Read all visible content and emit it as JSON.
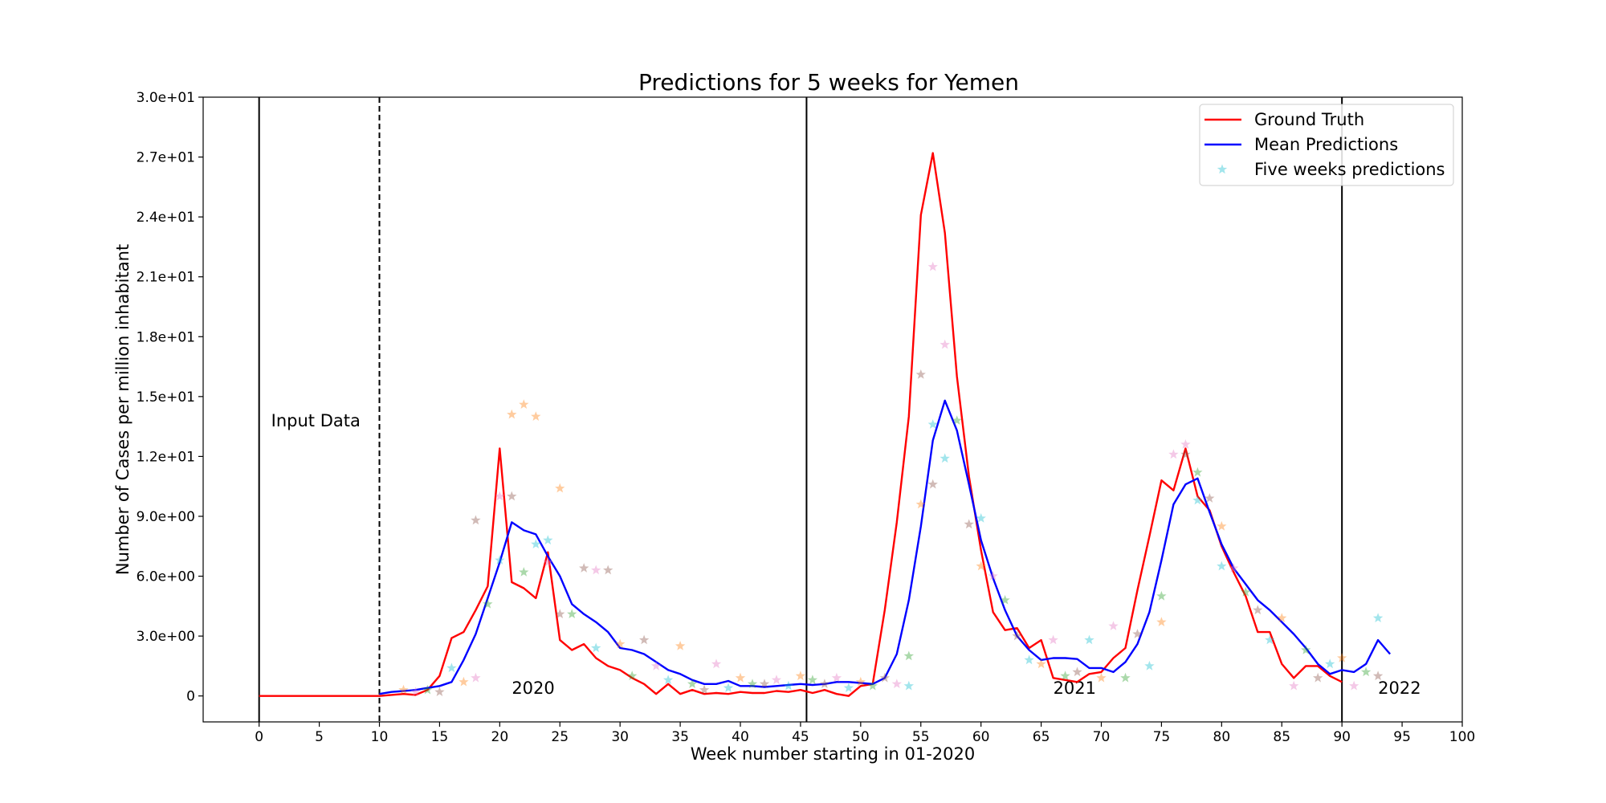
{
  "chart_data": {
    "type": "line",
    "title": "Predictions for 5 weeks for Yemen",
    "xlabel": "Week number starting in 01-2020",
    "ylabel": "Number of Cases per million inhabitant",
    "annotations": [
      "Input Data",
      "2020",
      "2021",
      "2022"
    ],
    "x": [
      0,
      1,
      2,
      3,
      4,
      5,
      6,
      7,
      8,
      9,
      10,
      11,
      12,
      13,
      14,
      15,
      16,
      17,
      18,
      19,
      20,
      21,
      22,
      23,
      24,
      25,
      26,
      27,
      28,
      29,
      30,
      31,
      32,
      33,
      34,
      35,
      36,
      37,
      38,
      39,
      40,
      41,
      42,
      43,
      44,
      45,
      46,
      47,
      48,
      49,
      50,
      51,
      52,
      53,
      54,
      55,
      56,
      57,
      58,
      59,
      60,
      61,
      62,
      63,
      64,
      65,
      66,
      67,
      68,
      69,
      70,
      71,
      72,
      73,
      74,
      75,
      76,
      77,
      78,
      79,
      80,
      81,
      82,
      83,
      84,
      85,
      86,
      87,
      88,
      89,
      90,
      91,
      92,
      93,
      94
    ],
    "series": [
      {
        "name": "Ground Truth",
        "color": "#ff0000",
        "values": [
          0,
          0,
          0,
          0,
          0,
          0,
          0,
          0,
          0,
          0,
          0,
          0.05,
          0.1,
          0.05,
          0.3,
          1.0,
          2.9,
          3.2,
          4.3,
          5.5,
          12.4,
          5.7,
          5.4,
          4.9,
          7.2,
          2.8,
          2.3,
          2.6,
          1.9,
          1.5,
          1.3,
          0.9,
          0.6,
          0.1,
          0.6,
          0.1,
          0.3,
          0.1,
          0.15,
          0.1,
          0.2,
          0.15,
          0.15,
          0.25,
          0.2,
          0.3,
          0.15,
          0.3,
          0.1,
          0.0,
          0.5,
          0.6,
          4.3,
          8.7,
          14.0,
          24.1,
          27.2,
          23.2,
          16.0,
          11.0,
          7.3,
          4.2,
          3.3,
          3.4,
          2.4,
          2.8,
          0.9,
          0.8,
          0.7,
          1.1,
          1.2,
          1.9,
          2.4,
          5.3,
          8.0,
          10.8,
          10.3,
          12.4,
          10.0,
          9.3,
          7.5,
          6.2,
          5.0,
          3.2,
          3.2,
          1.6,
          0.9,
          1.5,
          1.5,
          1.0,
          0.7,
          null,
          null,
          null,
          null
        ]
      },
      {
        "name": "Mean Predictions",
        "color": "#0000ff",
        "values": [
          null,
          null,
          null,
          null,
          null,
          null,
          null,
          null,
          null,
          null,
          0.1,
          0.2,
          0.25,
          0.3,
          0.4,
          0.5,
          0.7,
          1.8,
          3.1,
          4.9,
          6.7,
          8.7,
          8.3,
          8.1,
          7.0,
          6.0,
          4.6,
          4.1,
          3.7,
          3.2,
          2.4,
          2.3,
          2.1,
          1.7,
          1.3,
          1.1,
          0.8,
          0.6,
          0.6,
          0.75,
          0.5,
          0.5,
          0.45,
          0.5,
          0.55,
          0.6,
          0.55,
          0.6,
          0.7,
          0.7,
          0.65,
          0.6,
          0.9,
          2.1,
          4.8,
          8.5,
          12.8,
          14.8,
          13.3,
          10.6,
          7.8,
          5.9,
          4.3,
          3.0,
          2.3,
          1.8,
          1.9,
          1.9,
          1.85,
          1.4,
          1.4,
          1.2,
          1.7,
          2.6,
          4.2,
          6.8,
          9.6,
          10.6,
          10.9,
          9.2,
          7.6,
          6.4,
          5.6,
          4.8,
          4.3,
          3.7,
          3.1,
          2.4,
          1.6,
          1.1,
          1.3,
          1.2,
          1.6,
          2.8,
          2.1
        ]
      },
      {
        "name": "Five weeks predictions",
        "marker": "star",
        "groups": [
          {
            "color": "#ff7f0e",
            "x": [
              12,
              17,
              21,
              22,
              23,
              25,
              30,
              35,
              40,
              45,
              50,
              55,
              60,
              65,
              70,
              75,
              80,
              85,
              90
            ],
            "values": [
              0.3,
              0.7,
              14.1,
              14.6,
              14.0,
              10.4,
              2.6,
              2.5,
              0.9,
              1.0,
              0.7,
              9.6,
              6.5,
              1.6,
              0.9,
              3.7,
              8.5,
              3.9,
              1.9
            ]
          },
          {
            "color": "#e377c2",
            "x": [
              13,
              18,
              20,
              24,
              28,
              33,
              38,
              43,
              48,
              53,
              56,
              57,
              61,
              66,
              71,
              76,
              77,
              81,
              86,
              91
            ],
            "values": [
              0.2,
              0.9,
              10.0,
              6.7,
              6.3,
              1.5,
              1.6,
              0.8,
              0.9,
              0.6,
              21.5,
              17.6,
              6.0,
              2.8,
              3.5,
              12.1,
              12.6,
              6.4,
              0.5,
              0.5
            ]
          },
          {
            "color": "#2ca02c",
            "x": [
              14,
              19,
              22,
              26,
              31,
              36,
              41,
              46,
              51,
              54,
              58,
              62,
              67,
              72,
              75,
              78,
              82,
              87,
              92
            ],
            "values": [
              0.3,
              4.6,
              6.2,
              4.1,
              1.0,
              0.6,
              0.6,
              0.8,
              0.5,
              2.0,
              13.8,
              4.8,
              1.0,
              0.9,
              5.0,
              11.2,
              5.2,
              2.3,
              1.2
            ]
          },
          {
            "color": "#8c564b",
            "x": [
              15,
              18,
              21,
              25,
              27,
              29,
              32,
              37,
              42,
              47,
              52,
              55,
              56,
              59,
              63,
              68,
              73,
              77,
              79,
              83,
              88,
              93
            ],
            "values": [
              0.2,
              8.8,
              10.0,
              4.1,
              6.4,
              6.3,
              2.8,
              0.3,
              0.6,
              0.6,
              0.9,
              16.1,
              10.6,
              8.6,
              3.0,
              1.2,
              3.1,
              12.1,
              9.9,
              4.3,
              0.9,
              1.0
            ]
          },
          {
            "color": "#17becf",
            "x": [
              16,
              20,
              23,
              24,
              28,
              34,
              39,
              44,
              49,
              54,
              56,
              57,
              60,
              64,
              69,
              74,
              78,
              80,
              84,
              89,
              93
            ],
            "values": [
              1.4,
              6.8,
              7.6,
              7.8,
              2.4,
              0.8,
              0.4,
              0.5,
              0.4,
              0.5,
              13.6,
              11.9,
              8.9,
              1.8,
              2.8,
              1.5,
              9.8,
              6.5,
              2.8,
              1.6,
              3.9
            ]
          }
        ]
      }
    ],
    "vlines": [
      {
        "x": 0,
        "dashed": false
      },
      {
        "x": 10,
        "dashed": true
      },
      {
        "x": 45.5,
        "dashed": false
      },
      {
        "x": 90,
        "dashed": false
      }
    ],
    "xlim": [
      -4.65,
      100
    ],
    "xticks": [
      0,
      5,
      10,
      15,
      20,
      25,
      30,
      35,
      40,
      45,
      50,
      55,
      60,
      65,
      70,
      75,
      80,
      85,
      90,
      95,
      100
    ],
    "ylim": [
      -1.3,
      30
    ],
    "yticks": [
      0,
      {
        "value": 3,
        "label": "3.0e+00"
      },
      {
        "value": 6,
        "label": "6.0e+00"
      },
      {
        "value": 9,
        "label": "9.0e+00"
      },
      {
        "value": 12,
        "label": "1.2e+01"
      },
      {
        "value": 15,
        "label": "1.5e+01"
      },
      {
        "value": 18,
        "label": "1.8e+01"
      },
      {
        "value": 21,
        "label": "2.1e+01"
      },
      {
        "value": 24,
        "label": "2.4e+01"
      },
      {
        "value": 27,
        "label": "2.7e+01"
      },
      {
        "value": 30,
        "label": "3.0e+01"
      }
    ],
    "legend": "upper right"
  }
}
